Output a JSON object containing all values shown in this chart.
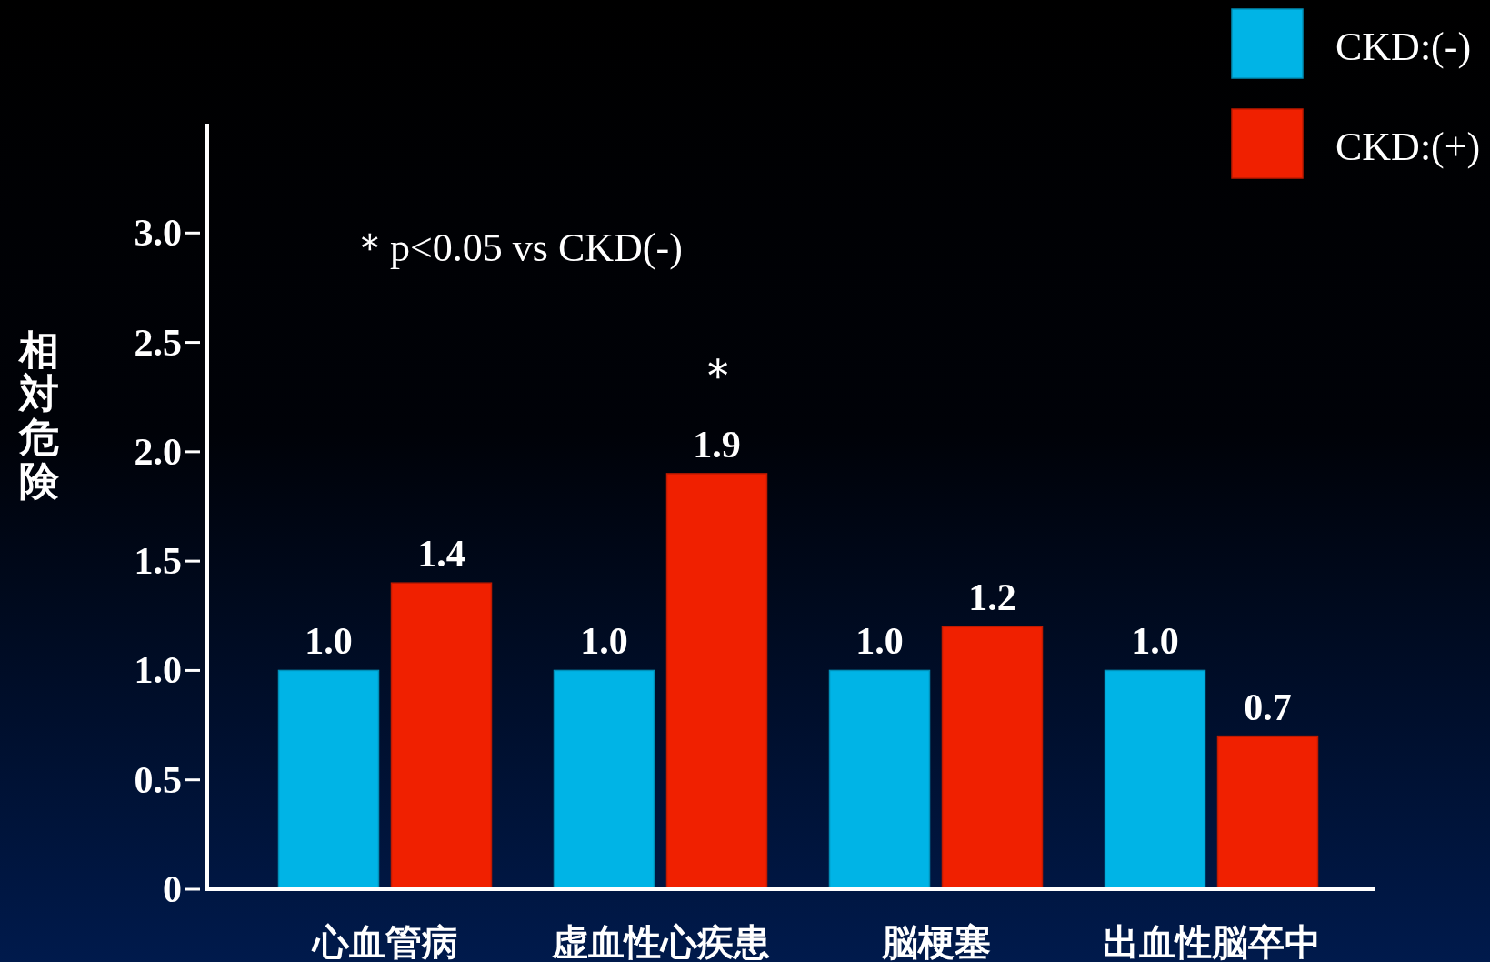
{
  "chart_data": {
    "type": "bar",
    "ylabel": "相対危険",
    "categories": [
      "心血管病",
      "虚血性心疾患",
      "脳梗塞",
      "出血性脳卒中"
    ],
    "series": [
      {
        "name": "CKD:(-)",
        "color": "#00b4e6",
        "values": [
          1.0,
          1.0,
          1.0,
          1.0
        ],
        "value_labels": [
          "1.0",
          "1.0",
          "1.0",
          "1.0"
        ]
      },
      {
        "name": "CKD:(+)",
        "color": "#f02000",
        "values": [
          1.4,
          1.9,
          1.2,
          0.7
        ],
        "value_labels": [
          "1.4",
          "1.9",
          "1.2",
          "0.7"
        ]
      }
    ],
    "ylim": [
      0,
      3.5
    ],
    "yticks": [
      0,
      {
        "value": 0.5,
        "label": "0.5"
      },
      {
        "value": 1,
        "label": "1.0"
      },
      {
        "value": 1.5,
        "label": "1.5"
      },
      {
        "value": 2,
        "label": "2.0"
      },
      {
        "value": 2.5,
        "label": "2.5"
      },
      {
        "value": 3,
        "label": "3.0"
      }
    ],
    "legend": "top right",
    "grid": false,
    "annotations": [
      "＊p<0.05 vs CKD(-)",
      "＊"
    ]
  }
}
